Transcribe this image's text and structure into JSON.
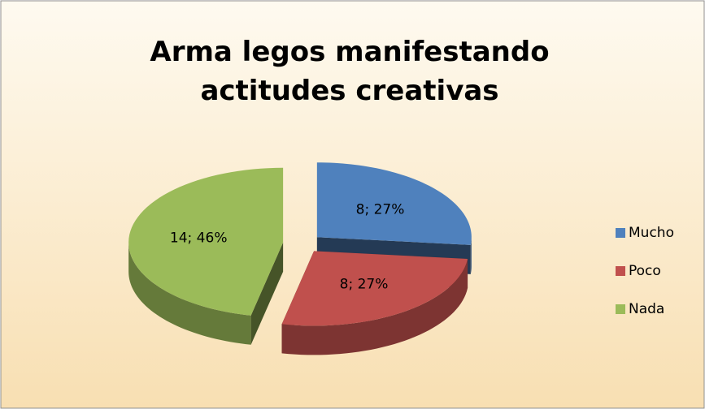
{
  "chart_data": {
    "type": "pie",
    "title": "Arma legos manifestando actitudes creativas",
    "categories": [
      "Mucho",
      "Poco",
      "Nada"
    ],
    "values": [
      8,
      8,
      14
    ],
    "value_labels": [
      "8; 27%",
      "8; 27%",
      "14; 46%"
    ],
    "colors": [
      "#4f81bd",
      "#c0504d",
      "#9bbb59"
    ],
    "legend": "right"
  }
}
